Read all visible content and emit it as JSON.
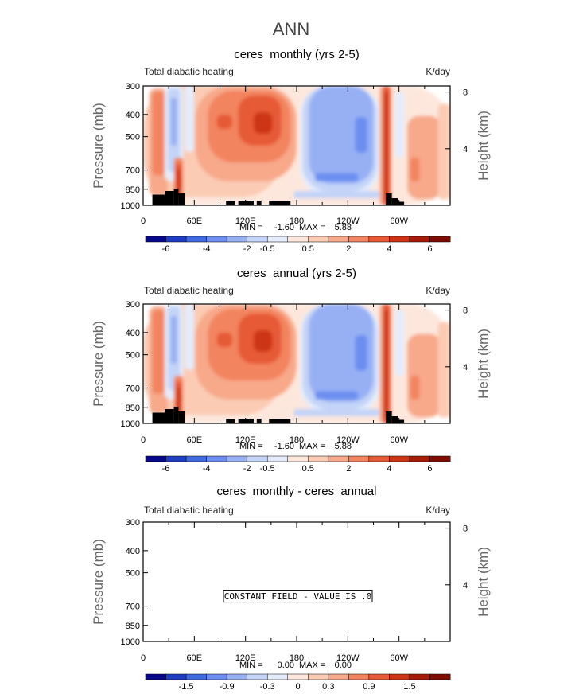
{
  "figure": {
    "title": "ANN"
  },
  "colors": {
    "levels_palette": [
      "#08088a",
      "#1e3fc0",
      "#3f6ae0",
      "#6c8ef0",
      "#97b0f4",
      "#c3d4f8",
      "#e4ecfb",
      "#fde7dc",
      "#fbcbb3",
      "#f7a98a",
      "#f2845f",
      "#e65a36",
      "#cc3414",
      "#a51c08",
      "#7f0d02"
    ],
    "land_mask": "#000000"
  },
  "chart_data": [
    {
      "type": "heatmap",
      "title": "ceres_monthly (yrs 2-5)",
      "left_label": "Total diabatic heating",
      "right_label": "K/day",
      "ylabel": "Pressure (mb)",
      "ylabel_right": "Height (km)",
      "x_ticks": [
        "0",
        "60E",
        "120E",
        "180",
        "120W",
        "60W"
      ],
      "x_range": [
        0,
        360
      ],
      "y_ticks": [
        "300",
        "400",
        "500",
        "700",
        "850",
        "1000"
      ],
      "y_range": [
        1000,
        300
      ],
      "y_right_ticks": [
        "8",
        "4"
      ],
      "stats": {
        "min_label": "MIN =",
        "min": "-1.60",
        "max_label": "MAX =",
        "max": "5.88"
      },
      "colorbar_labels": [
        "-6",
        "-4",
        "-2",
        "-0.5",
        "0.5",
        "2",
        "4",
        "6"
      ],
      "constant_field": false
    },
    {
      "type": "heatmap",
      "title": "ceres_annual (yrs 2-5)",
      "left_label": "Total diabatic heating",
      "right_label": "K/day",
      "ylabel": "Pressure (mb)",
      "ylabel_right": "Height (km)",
      "x_ticks": [
        "0",
        "60E",
        "120E",
        "180",
        "120W",
        "60W"
      ],
      "x_range": [
        0,
        360
      ],
      "y_ticks": [
        "300",
        "400",
        "500",
        "700",
        "850",
        "1000"
      ],
      "y_range": [
        1000,
        300
      ],
      "y_right_ticks": [
        "8",
        "4"
      ],
      "stats": {
        "min_label": "MIN =",
        "min": "-1.60",
        "max_label": "MAX =",
        "max": "5.88"
      },
      "colorbar_labels": [
        "-6",
        "-4",
        "-2",
        "-0.5",
        "0.5",
        "2",
        "4",
        "6"
      ],
      "constant_field": false
    },
    {
      "type": "heatmap",
      "title": "ceres_monthly - ceres_annual",
      "left_label": "Total diabatic heating",
      "right_label": "K/day",
      "ylabel": "Pressure (mb)",
      "ylabel_right": "Height (km)",
      "x_ticks": [
        "0",
        "60E",
        "120E",
        "180",
        "120W",
        "60W"
      ],
      "x_range": [
        0,
        360
      ],
      "y_ticks": [
        "300",
        "400",
        "500",
        "700",
        "850",
        "1000"
      ],
      "y_range": [
        1000,
        300
      ],
      "y_right_ticks": [
        "8",
        "4"
      ],
      "stats": {
        "min_label": "MIN =",
        "min": "0.00",
        "max_label": "MAX =",
        "max": "0.00"
      },
      "colorbar_labels": [
        "-1.5",
        "-0.9",
        "-0.3",
        "0",
        "0.3",
        "0.9",
        "1.5"
      ],
      "constant_field": true,
      "constant_field_label": "CONSTANT FIELD - VALUE IS .0"
    }
  ]
}
